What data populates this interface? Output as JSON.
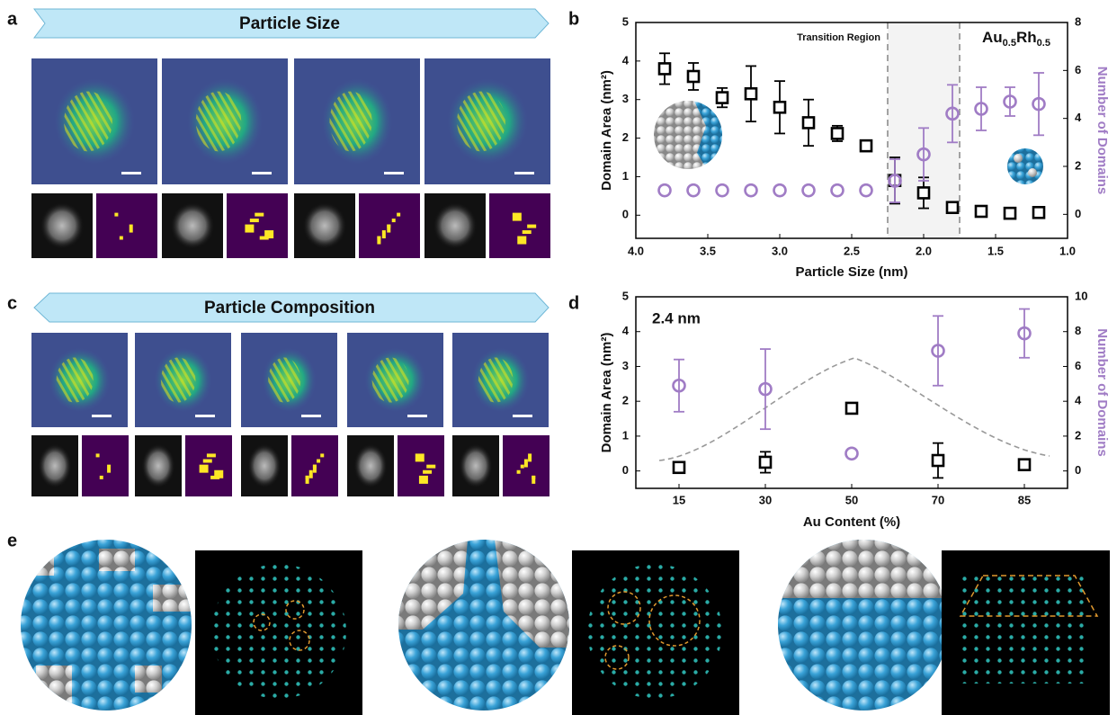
{
  "panels": {
    "a": {
      "label": "a",
      "banner": "Particle Size"
    },
    "b": {
      "label": "b"
    },
    "c": {
      "label": "c",
      "banner": "Particle Composition"
    },
    "d": {
      "label": "d"
    },
    "e": {
      "label": "e"
    }
  },
  "chart_data": [
    {
      "type": "scatter",
      "x": [
        3.8,
        3.6,
        3.4,
        3.2,
        3.0,
        2.8,
        2.6,
        2.4,
        2.2,
        2.0,
        1.8,
        1.6,
        1.4,
        1.2
      ],
      "xlim": [
        4,
        1
      ],
      "xticks": [
        {
          "value": 4,
          "label": "4.0"
        },
        3.5,
        {
          "value": 3,
          "label": "3.0"
        },
        2.5,
        {
          "value": 2,
          "label": "2.0"
        },
        1.5,
        {
          "value": 1,
          "label": "1.0"
        }
      ],
      "ylim": [
        -0.6,
        5
      ],
      "yticks": [
        0,
        1,
        2,
        3,
        4,
        5
      ],
      "y2lim": [
        -1,
        8
      ],
      "y2ticks": [
        0,
        2,
        4,
        6,
        8
      ],
      "xlabel": "Particle Size (nm)",
      "ylabel": "Domain Area (nm²)",
      "y2label": "Number of Domains",
      "annotation": "Transition Region",
      "composition_parts": [
        "Au",
        "0.5",
        "Rh",
        "0.5"
      ],
      "shaded_x": [
        2.25,
        1.75
      ],
      "series": [
        {
          "color": "#000000",
          "marker": "square",
          "values": [
            3.8,
            3.6,
            3.05,
            3.15,
            2.8,
            2.4,
            2.12,
            1.8,
            0.9,
            0.58,
            0.2,
            0.1,
            0.05,
            0.07
          ],
          "errors": [
            0.4,
            0.35,
            0.25,
            0.72,
            0.68,
            0.6,
            0.2,
            null,
            0.6,
            0.4,
            null,
            null,
            null,
            null
          ]
        },
        {
          "color": "#a07cc5",
          "marker": "circle",
          "axis": "y2",
          "values": [
            1,
            1,
            1,
            1,
            1,
            1,
            1,
            1,
            1.4,
            2.5,
            4.2,
            4.4,
            4.7,
            4.6
          ],
          "errors": [
            null,
            null,
            null,
            null,
            null,
            null,
            null,
            null,
            0.9,
            1.1,
            1.2,
            0.9,
            0.6,
            1.3
          ]
        }
      ]
    },
    {
      "type": "scatter",
      "categories": [
        "15",
        "30",
        "50",
        "70",
        "85"
      ],
      "ylim": [
        -0.5,
        5
      ],
      "yticks": [
        0,
        1,
        2,
        3,
        4,
        5
      ],
      "y2lim": [
        -1,
        10
      ],
      "y2ticks": [
        0,
        2,
        4,
        6,
        8,
        10
      ],
      "xlabel": "Au Content (%)",
      "ylabel": "Domain Area (nm²)",
      "y2label": "Number of Domains",
      "annotation": "2.4 nm",
      "series": [
        {
          "color": "#000000",
          "marker": "square",
          "values": [
            0.1,
            0.25,
            1.8,
            0.3,
            0.18
          ],
          "errors": [
            0.1,
            0.3,
            0.12,
            0.5,
            0.08
          ]
        },
        {
          "color": "#a07cc5",
          "marker": "circle",
          "axis": "y2",
          "values": [
            4.9,
            4.7,
            1.0,
            6.9,
            7.9
          ],
          "errors": [
            1.5,
            2.3,
            null,
            2.0,
            1.4
          ]
        }
      ]
    }
  ]
}
